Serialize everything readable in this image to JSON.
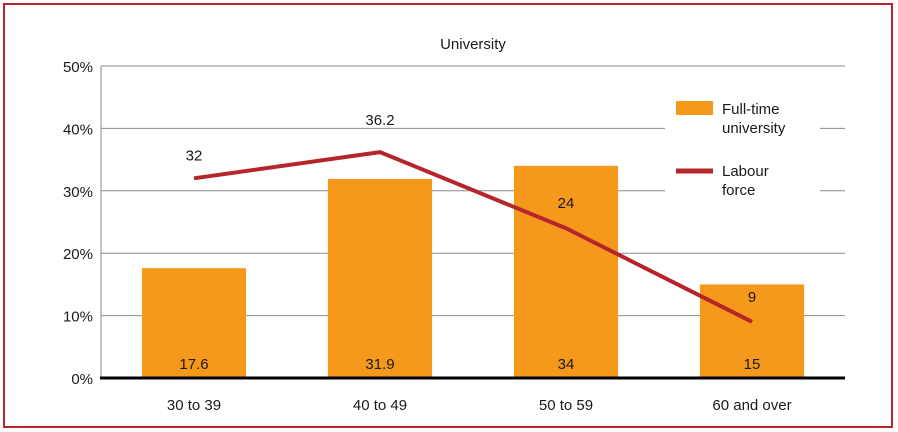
{
  "chart_data": {
    "type": "bar",
    "title": "University",
    "categories": [
      "30 to 39",
      "40 to 49",
      "50 to 59",
      "60 and over"
    ],
    "ylim": [
      0,
      50
    ],
    "yticks": [
      0,
      10,
      20,
      30,
      40,
      50
    ],
    "ytick_labels": [
      "0%",
      "10%",
      "20%",
      "30%",
      "40%",
      "50%"
    ],
    "grid": true,
    "legend_position": "top-right",
    "series": [
      {
        "name": "Full-time university",
        "legend_lines": [
          "Full-time",
          "university"
        ],
        "type": "bar",
        "color": "#f5991c",
        "values": [
          17.6,
          31.9,
          34,
          15
        ],
        "labels": [
          "17.6",
          "31.9",
          "34",
          "15"
        ]
      },
      {
        "name": "Labour force",
        "legend_lines": [
          "Labour",
          "force"
        ],
        "type": "line",
        "color": "#b5262a",
        "values": [
          32,
          36.2,
          24,
          9
        ],
        "labels": [
          "32",
          "36.2",
          "24",
          "9"
        ]
      }
    ]
  }
}
